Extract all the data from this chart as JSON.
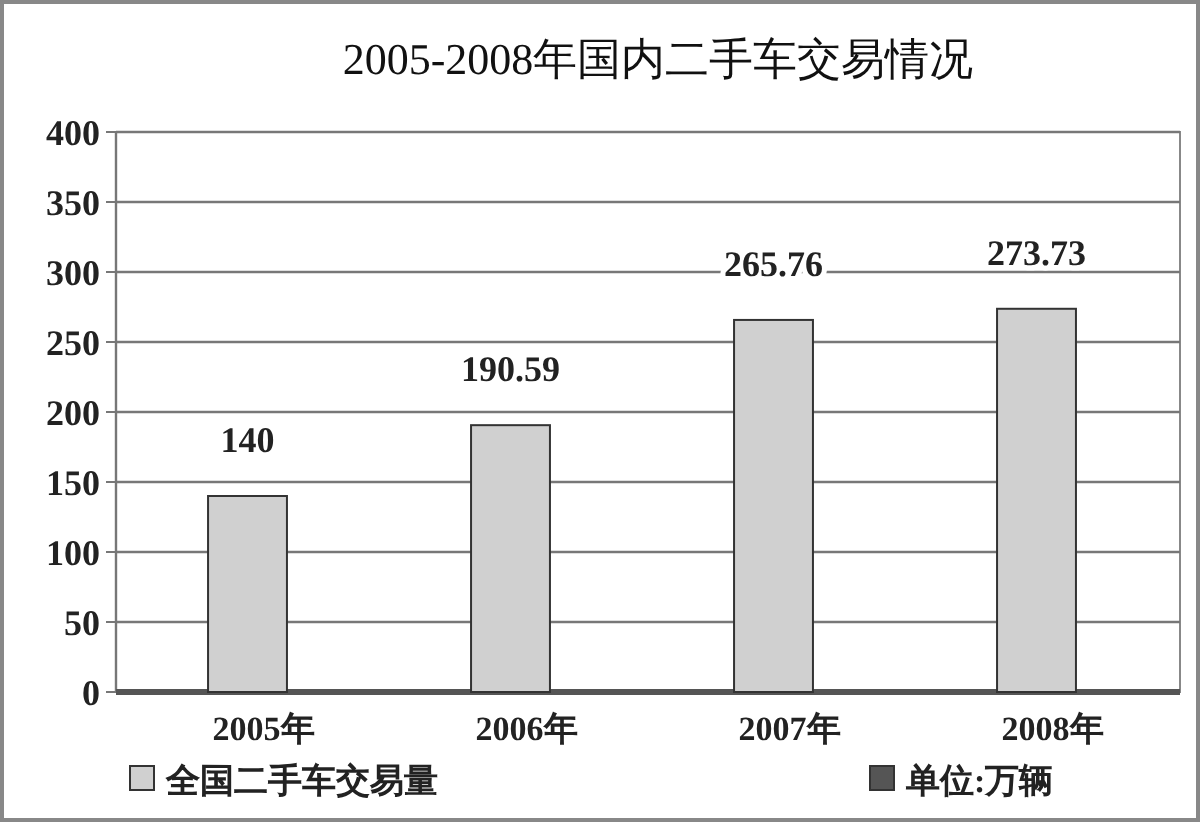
{
  "chart_data": {
    "type": "bar",
    "title": "2005-2008年国内二手车交易情况",
    "categories": [
      "2005年",
      "2006年",
      "2007年",
      "2008年"
    ],
    "series": [
      {
        "name": "全国二手车交易量",
        "color": "#d0d0d0",
        "values": [
          140,
          190.59,
          265.76,
          273.73
        ]
      },
      {
        "name": "单位:万辆",
        "color": "#555555",
        "values": [
          null,
          null,
          null,
          null
        ]
      }
    ],
    "ylim": [
      0,
      400
    ],
    "yticks": [
      0,
      50,
      100,
      150,
      200,
      250,
      300,
      350,
      400
    ],
    "grid": "y",
    "legend": "bottom",
    "data_labels": true
  }
}
